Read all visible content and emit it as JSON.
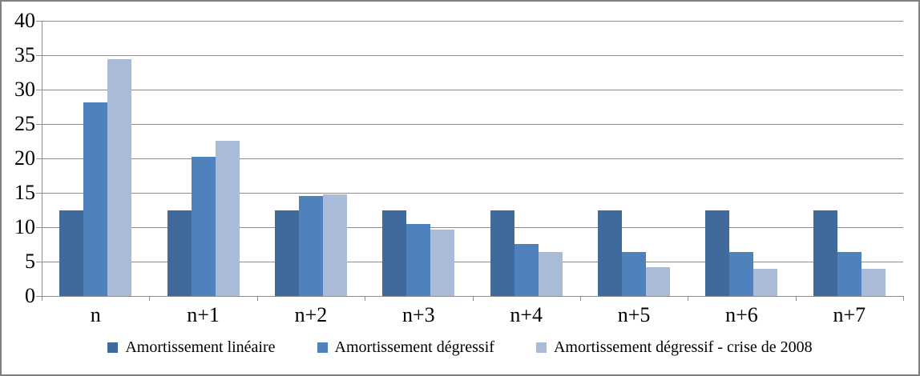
{
  "chart_data": {
    "type": "bar",
    "categories": [
      "n",
      "n+1",
      "n+2",
      "n+3",
      "n+4",
      "n+5",
      "n+6",
      "n+7"
    ],
    "series": [
      {
        "name": "Amortissement linéaire",
        "color": "#40699C",
        "values": [
          12.5,
          12.5,
          12.5,
          12.5,
          12.5,
          12.5,
          12.5,
          12.5
        ]
      },
      {
        "name": "Amortissement dégressif",
        "color": "#4F81BD",
        "values": [
          28.13,
          20.21,
          14.53,
          10.44,
          7.51,
          6.39,
          6.39,
          6.39
        ]
      },
      {
        "name": "Amortissement dégressif - crise de 2008",
        "color": "#A9BBD9",
        "values": [
          34.38,
          22.56,
          14.81,
          9.71,
          6.38,
          4.18,
          4.0,
          4.0
        ]
      }
    ],
    "ylim": [
      0,
      40
    ],
    "yticks": [
      0,
      5,
      10,
      15,
      20,
      25,
      30,
      35,
      40
    ],
    "grid": true,
    "legend_position": "bottom",
    "colors": {
      "gridline": "#8E8E8E",
      "axis": "#8E8E8E",
      "text": "#000000",
      "frame_border": "#7F7F7F",
      "background": "#FFFFFF"
    }
  }
}
